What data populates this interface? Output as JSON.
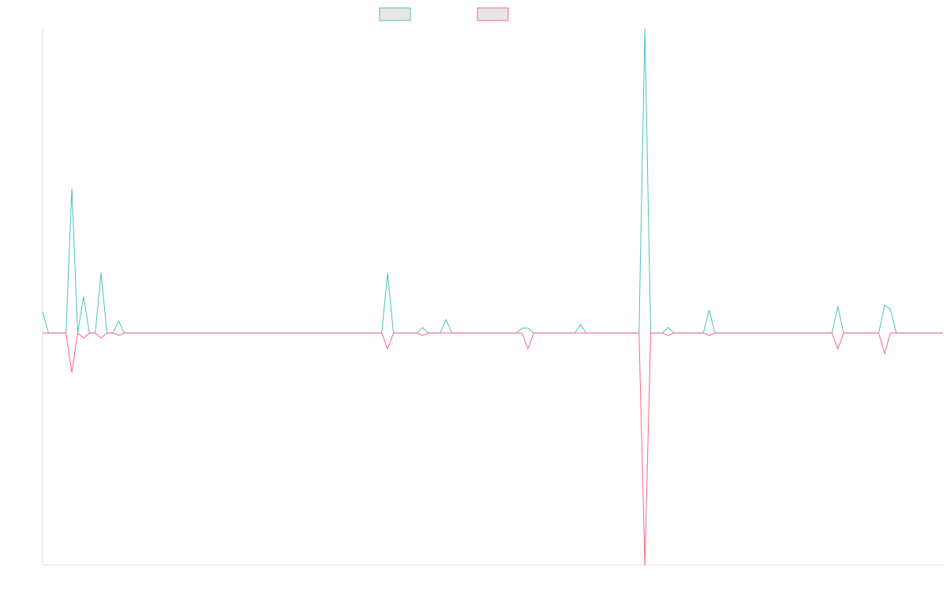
{
  "chart_data": {
    "type": "line",
    "categories": [
      null,
      null,
      null,
      null,
      null,
      null,
      null,
      null,
      null,
      null,
      null,
      null,
      null,
      null,
      null,
      null,
      null,
      null,
      null,
      null,
      null,
      null,
      null,
      null,
      null,
      null,
      null,
      null,
      null,
      null,
      null,
      null,
      null,
      null,
      null,
      null,
      null,
      null,
      null,
      null,
      null,
      null,
      null,
      null,
      null,
      null,
      null,
      null,
      null,
      null,
      null,
      null,
      null,
      null,
      null,
      null,
      null,
      null,
      null,
      null,
      null,
      null,
      null,
      null,
      null,
      null,
      null,
      null,
      null,
      null,
      null,
      null,
      null,
      null,
      null,
      null,
      null,
      null,
      null,
      null,
      null,
      null,
      null,
      null,
      null,
      null,
      null,
      null,
      null,
      null,
      null,
      null,
      null,
      null,
      null,
      null,
      null,
      null,
      null,
      null,
      null,
      null,
      null,
      null,
      null,
      null,
      null,
      null,
      null,
      null,
      null,
      null,
      null,
      null,
      null,
      null,
      null,
      null,
      null,
      null,
      null,
      null,
      null,
      null,
      null,
      null,
      null,
      null,
      null,
      null,
      null,
      null,
      null,
      null,
      null,
      null,
      null,
      null,
      null,
      null,
      null,
      null,
      null,
      null,
      null,
      null,
      null,
      null,
      null,
      null,
      null,
      null,
      null,
      null,
      null
    ],
    "series": [
      {
        "color": "#4bc0c0",
        "values": [
          7,
          0,
          0,
          0,
          0,
          47.4,
          0,
          11.9,
          0,
          0,
          19.7,
          0,
          0,
          3.9,
          0,
          0,
          0,
          0,
          0,
          0,
          0,
          0,
          0,
          0,
          0,
          0,
          0,
          0,
          0,
          0,
          0,
          0,
          0,
          0,
          0,
          0,
          0,
          0,
          0,
          0,
          0,
          0,
          0,
          0,
          0,
          0,
          0,
          0,
          0,
          0,
          0,
          0,
          0,
          0,
          0,
          0,
          0,
          0,
          0,
          19.7,
          0,
          0,
          0,
          0,
          0,
          1.8,
          0,
          0,
          0,
          4.4,
          0,
          0,
          0,
          0,
          0,
          0,
          0,
          0,
          0,
          0,
          0,
          0,
          1.6,
          1.6,
          0,
          0,
          0,
          0,
          0,
          0,
          0,
          0,
          2.8,
          0,
          0,
          0,
          0,
          0,
          0,
          0,
          0,
          0,
          0,
          100,
          0,
          0,
          0,
          1.8,
          0,
          0,
          0,
          0,
          0,
          0,
          7.5,
          0,
          0,
          0,
          0,
          0,
          0,
          0,
          0,
          0,
          0,
          0,
          0,
          0,
          0,
          0,
          0,
          0,
          0,
          0,
          0,
          0,
          8.8,
          0,
          0,
          0,
          0,
          0,
          0,
          0,
          9.1,
          7.8,
          0,
          0,
          0,
          0,
          0,
          0,
          0,
          0,
          0
        ]
      },
      {
        "color": "#ff6384",
        "values": [
          0,
          0,
          0,
          0,
          0,
          -13,
          0,
          -1.6,
          0,
          0,
          -1.6,
          0,
          0,
          -0.8,
          0,
          0,
          0,
          0,
          0,
          0,
          0,
          0,
          0,
          0,
          0,
          0,
          0,
          0,
          0,
          0,
          0,
          0,
          0,
          0,
          0,
          0,
          0,
          0,
          0,
          0,
          0,
          0,
          0,
          0,
          0,
          0,
          0,
          0,
          0,
          0,
          0,
          0,
          0,
          0,
          0,
          0,
          0,
          0,
          0,
          -5.2,
          0,
          0,
          0,
          0,
          0,
          -0.8,
          0,
          0,
          0,
          0,
          0,
          0,
          0,
          0,
          0,
          0,
          0,
          0,
          0,
          0,
          0,
          0,
          0,
          -5.2,
          0,
          0,
          0,
          0,
          0,
          0,
          0,
          0,
          0,
          0,
          0,
          0,
          0,
          0,
          0,
          0,
          0,
          0,
          0,
          -76.2,
          0,
          0,
          0,
          -0.8,
          0,
          0,
          0,
          0,
          0,
          0,
          -0.8,
          0,
          0,
          0,
          0,
          0,
          0,
          0,
          0,
          0,
          0,
          0,
          0,
          0,
          0,
          0,
          0,
          0,
          0,
          0,
          0,
          0,
          -5.2,
          0,
          0,
          0,
          0,
          0,
          0,
          0,
          -6.7,
          0,
          0,
          0,
          0,
          0,
          0,
          0,
          0,
          0,
          0
        ]
      }
    ],
    "ylim": [
      -76.2,
      100
    ]
  }
}
